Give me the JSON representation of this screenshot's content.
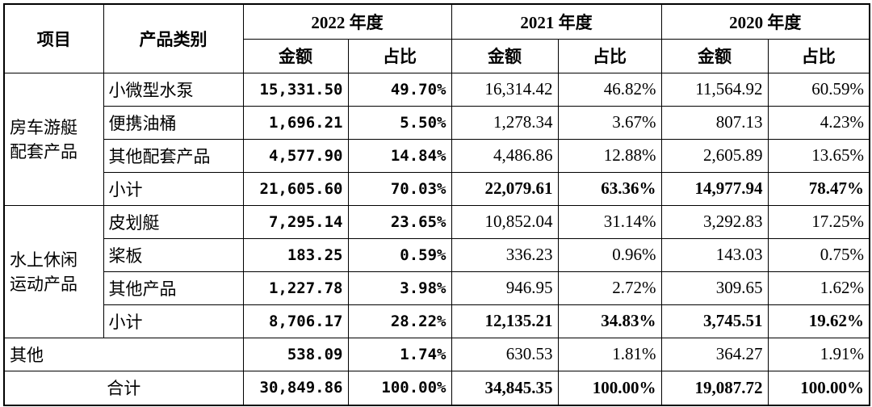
{
  "header": {
    "item": "项目",
    "category": "产品类别",
    "years": [
      "2022 年度",
      "2021 年度",
      "2020 年度"
    ],
    "amount": "金额",
    "ratio": "占比"
  },
  "groups": [
    {
      "name_lines": [
        "房车游艇",
        "配套产品"
      ],
      "rows": [
        {
          "category": "小微型水泵",
          "values": [
            "15,331.50",
            "49.70%",
            "16,314.42",
            "46.82%",
            "11,564.92",
            "60.59%"
          ]
        },
        {
          "category": "便携油桶",
          "values": [
            "1,696.21",
            "5.50%",
            "1,278.34",
            "3.67%",
            "807.13",
            "4.23%"
          ]
        },
        {
          "category": "其他配套产品",
          "values": [
            "4,577.90",
            "14.84%",
            "4,486.86",
            "12.88%",
            "2,605.89",
            "13.65%"
          ]
        },
        {
          "category": "小计",
          "values": [
            "21,605.60",
            "70.03%",
            "22,079.61",
            "63.36%",
            "14,977.94",
            "78.47%"
          ]
        }
      ]
    },
    {
      "name_lines": [
        "水上休闲",
        "运动产品"
      ],
      "rows": [
        {
          "category": "皮划艇",
          "values": [
            "7,295.14",
            "23.65%",
            "10,852.04",
            "31.14%",
            "3,292.83",
            "17.25%"
          ]
        },
        {
          "category": "桨板",
          "values": [
            "183.25",
            "0.59%",
            "336.23",
            "0.96%",
            "143.03",
            "0.75%"
          ]
        },
        {
          "category": "其他产品",
          "values": [
            "1,227.78",
            "3.98%",
            "946.95",
            "2.72%",
            "309.65",
            "1.62%"
          ]
        },
        {
          "category": "小计",
          "values": [
            "8,706.17",
            "28.22%",
            "12,135.21",
            "34.83%",
            "3,745.51",
            "19.62%"
          ]
        }
      ]
    }
  ],
  "other": {
    "label": "其他",
    "values": [
      "538.09",
      "1.74%",
      "630.53",
      "1.81%",
      "364.27",
      "1.91%"
    ]
  },
  "total": {
    "label": "合计",
    "values": [
      "30,849.86",
      "100.00%",
      "34,845.35",
      "100.00%",
      "19,087.72",
      "100.00%"
    ]
  }
}
